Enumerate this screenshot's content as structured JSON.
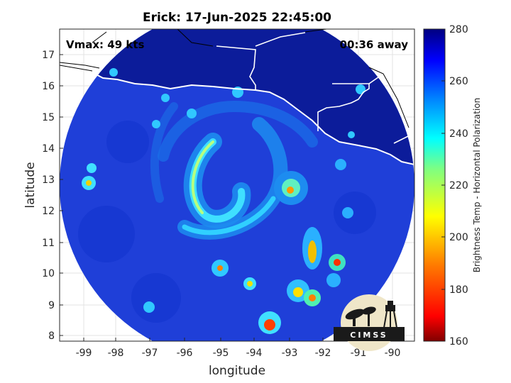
{
  "title": "Erick: 17-Jun-2025 22:45:00",
  "vmax_label": "Vmax: 49 kts",
  "time_label": "00:36 away",
  "xlabel": "longitude",
  "ylabel": "latitude",
  "xticks": [
    "-99",
    "-98",
    "-97",
    "-96",
    "-95",
    "-94",
    "-93",
    "-92",
    "-91",
    "-90"
  ],
  "yticks": [
    "8",
    "9",
    "10",
    "11",
    "12",
    "13",
    "14",
    "15",
    "16",
    "17"
  ],
  "colorbar": {
    "label": "Brightness Temp - Horizontal Polarization",
    "ticks": [
      "160",
      "180",
      "200",
      "220",
      "240",
      "260",
      "280"
    ],
    "range": [
      160,
      280
    ],
    "colors": [
      "#800000",
      "#ff0000",
      "#ff8000",
      "#ffff00",
      "#80ff80",
      "#00ffff",
      "#0080ff",
      "#0000ff",
      "#000080"
    ]
  },
  "logo": {
    "text": "CIMSS"
  },
  "map": {
    "lon_range": [
      -99.6,
      -89.6
    ],
    "lat_range": [
      7.8,
      17.8
    ],
    "swath_center": [
      -94.5,
      12.6
    ],
    "swath_radius_deg": 4.6,
    "storm_center": [
      -94.8,
      12.4
    ]
  },
  "colors": {
    "background": "#1f3fd8",
    "land": "#0c1c9a",
    "coast": "#ffffff",
    "plot_bg": "#ffffff"
  }
}
